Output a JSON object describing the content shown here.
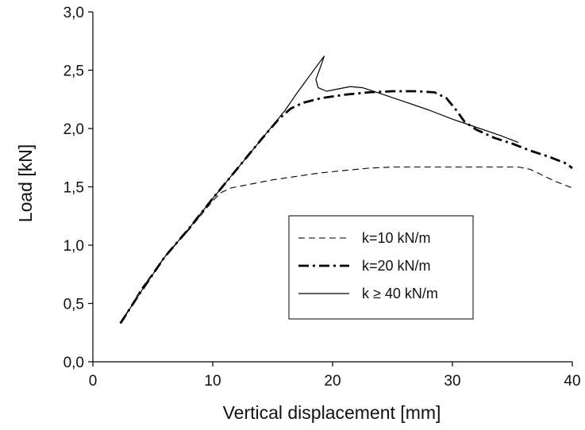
{
  "chart_data": {
    "type": "line",
    "xlabel": "Vertical displacement [mm]",
    "ylabel": "Load [kN]",
    "xlim": [
      0,
      40
    ],
    "ylim": [
      0,
      3.0
    ],
    "x_ticks": [
      "0",
      "10",
      "20",
      "30",
      "40"
    ],
    "y_ticks": [
      "0,0",
      "0,5",
      "1,0",
      "1,5",
      "2,0",
      "2,5",
      "3,0"
    ],
    "grid": false,
    "legend_position": "center-right",
    "series": [
      {
        "name": "k=10 kN/m",
        "style": "dashed",
        "color": "#000000",
        "points": [
          [
            2.3,
            0.33
          ],
          [
            4,
            0.62
          ],
          [
            6,
            0.9
          ],
          [
            8,
            1.13
          ],
          [
            10,
            1.38
          ],
          [
            10.7,
            1.45
          ],
          [
            11.5,
            1.49
          ],
          [
            13,
            1.52
          ],
          [
            15,
            1.56
          ],
          [
            17,
            1.59
          ],
          [
            19,
            1.62
          ],
          [
            21,
            1.64
          ],
          [
            23,
            1.66
          ],
          [
            25,
            1.67
          ],
          [
            28,
            1.67
          ],
          [
            31,
            1.67
          ],
          [
            34,
            1.67
          ],
          [
            35.5,
            1.67
          ],
          [
            36.5,
            1.65
          ],
          [
            37.5,
            1.6
          ],
          [
            38.5,
            1.55
          ],
          [
            39.5,
            1.51
          ],
          [
            40,
            1.49
          ]
        ]
      },
      {
        "name": "k=20 kN/m",
        "style": "dash-dot",
        "color": "#000000",
        "points": [
          [
            2.3,
            0.33
          ],
          [
            4,
            0.6
          ],
          [
            6,
            0.9
          ],
          [
            8,
            1.14
          ],
          [
            10,
            1.4
          ],
          [
            12,
            1.65
          ],
          [
            14,
            1.9
          ],
          [
            15.5,
            2.08
          ],
          [
            16.5,
            2.17
          ],
          [
            17.5,
            2.22
          ],
          [
            19,
            2.26
          ],
          [
            21,
            2.29
          ],
          [
            23,
            2.31
          ],
          [
            25,
            2.32
          ],
          [
            27,
            2.32
          ],
          [
            28.5,
            2.31
          ],
          [
            29.5,
            2.26
          ],
          [
            30.3,
            2.16
          ],
          [
            31,
            2.06
          ],
          [
            32,
            1.99
          ],
          [
            33.5,
            1.92
          ],
          [
            35,
            1.87
          ],
          [
            36.5,
            1.81
          ],
          [
            38,
            1.76
          ],
          [
            39.5,
            1.7
          ],
          [
            40,
            1.66
          ]
        ]
      },
      {
        "name": "k ≥ 40 kN/m",
        "style": "solid",
        "color": "#000000",
        "points": [
          [
            2.3,
            0.33
          ],
          [
            4,
            0.6
          ],
          [
            6,
            0.9
          ],
          [
            8,
            1.14
          ],
          [
            10,
            1.4
          ],
          [
            12,
            1.65
          ],
          [
            14,
            1.9
          ],
          [
            16,
            2.15
          ],
          [
            17,
            2.3
          ],
          [
            18,
            2.44
          ],
          [
            19,
            2.58
          ],
          [
            19.3,
            2.62
          ],
          [
            19.0,
            2.53
          ],
          [
            18.6,
            2.42
          ],
          [
            18.8,
            2.35
          ],
          [
            19.5,
            2.32
          ],
          [
            20.5,
            2.34
          ],
          [
            21.5,
            2.36
          ],
          [
            22.5,
            2.35
          ],
          [
            24,
            2.3
          ],
          [
            26,
            2.23
          ],
          [
            28,
            2.16
          ],
          [
            30,
            2.08
          ],
          [
            32,
            2.01
          ],
          [
            34,
            1.94
          ],
          [
            35.5,
            1.88
          ]
        ]
      }
    ]
  }
}
